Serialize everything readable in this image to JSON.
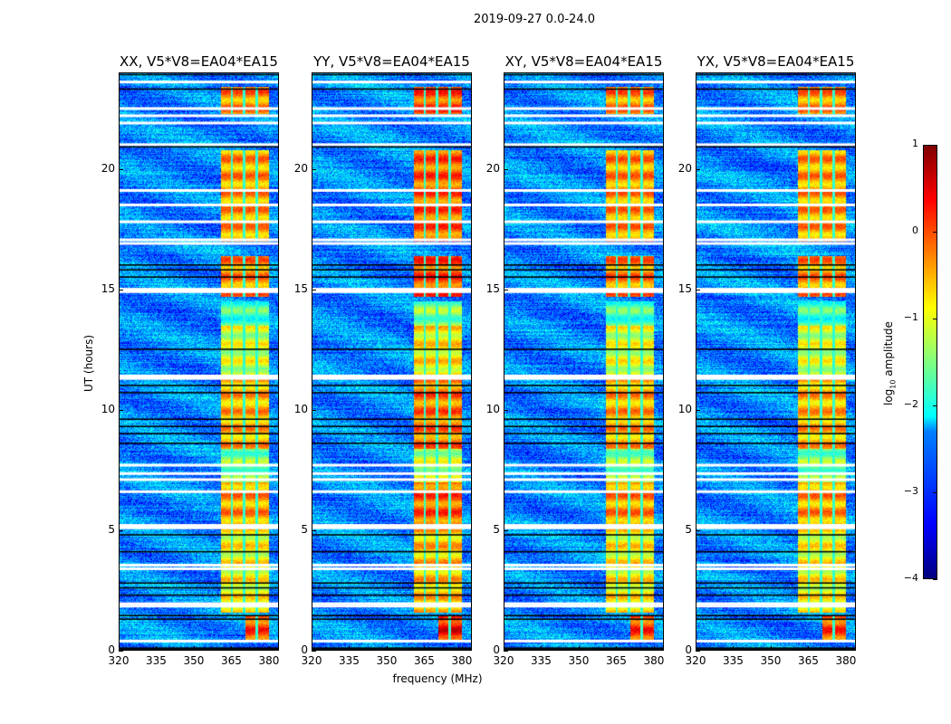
{
  "chart_data": {
    "type": "heatmap",
    "title": "2019-09-27 0.0-24.0",
    "xlabel": "frequency (MHz)",
    "ylabel": "UT (hours)",
    "xlim": [
      320,
      384
    ],
    "ylim": [
      0,
      24
    ],
    "xticks": [
      "320",
      "335",
      "350",
      "365",
      "380"
    ],
    "xtick_values": [
      320,
      335,
      350,
      365,
      380
    ],
    "yticks": [
      "0",
      "5",
      "10",
      "15",
      "20"
    ],
    "ytick_values": [
      0,
      5,
      10,
      15,
      20
    ],
    "colorbar": {
      "label_prefix": "log",
      "label_sub": "10",
      "label_suffix": " amplitude",
      "range": [
        -4,
        1
      ],
      "ticks": [
        "1",
        "0",
        "−1",
        "−2",
        "−3",
        "−4"
      ],
      "tick_values": [
        1,
        0,
        -1,
        -2,
        -3,
        -4
      ],
      "colormap": "jet"
    },
    "panels": [
      {
        "title": "XX, V5*V8=EA04*EA15",
        "level_offset": 0
      },
      {
        "title": "YY, V5*V8=EA04*EA15",
        "level_offset": 0.3
      },
      {
        "title": "XY, V5*V8=EA04*EA15",
        "level_offset": 0.05
      },
      {
        "title": "YX, V5*V8=EA04*EA15",
        "level_offset": 0
      }
    ],
    "background_level": -2.7,
    "signal_subbands_mhz": [
      [
        360.5,
        364.5
      ],
      [
        365.5,
        369.5
      ],
      [
        370.5,
        374.5
      ],
      [
        375.5,
        380
      ]
    ],
    "signal_blocks": [
      {
        "t": [
          0.4,
          1.5
        ],
        "f": [
          370.5,
          380
        ],
        "level": 0.0
      },
      {
        "t": [
          1.6,
          5.1
        ],
        "f": [
          360.5,
          380
        ],
        "level": -0.9
      },
      {
        "t": [
          5.2,
          7.0
        ],
        "f": [
          360.5,
          380
        ],
        "level": -0.4
      },
      {
        "t": [
          7.0,
          8.4
        ],
        "f": [
          360.5,
          380
        ],
        "level": -1.5
      },
      {
        "t": [
          8.4,
          11.3
        ],
        "f": [
          360.5,
          380
        ],
        "level": -0.5
      },
      {
        "t": [
          11.3,
          13.5
        ],
        "f": [
          360.5,
          380
        ],
        "level": -1.1
      },
      {
        "t": [
          13.5,
          14.5
        ],
        "f": [
          360.5,
          380
        ],
        "level": -1.8
      },
      {
        "t": [
          14.7,
          16.4
        ],
        "f": [
          360.5,
          380
        ],
        "level": -0.3
      },
      {
        "t": [
          17.0,
          20.8
        ],
        "f": [
          360.5,
          380
        ],
        "level": -0.4
      },
      {
        "t": [
          22.3,
          23.4
        ],
        "f": [
          360.5,
          380
        ],
        "level": -0.3
      }
    ],
    "flagged_rows_hours": [
      0.4,
      1.85,
      1.95,
      3.4,
      3.55,
      5.1,
      5.2,
      6.6,
      7.1,
      7.35,
      7.7,
      11.3,
      11.4,
      14.9,
      15.0,
      16.9,
      17.05,
      17.8,
      18.5,
      19.1,
      21.0,
      21.9,
      22.2,
      22.5,
      23.6
    ],
    "blank_rows_hours": [
      0.05,
      0.1,
      1.3,
      1.45,
      2.3,
      2.6,
      2.8,
      4.1,
      4.8,
      8.6,
      9.0,
      9.3,
      9.6,
      10.7,
      11.0,
      12.5,
      15.5,
      15.8,
      16.0,
      20.9,
      23.3,
      23.9
    ]
  }
}
